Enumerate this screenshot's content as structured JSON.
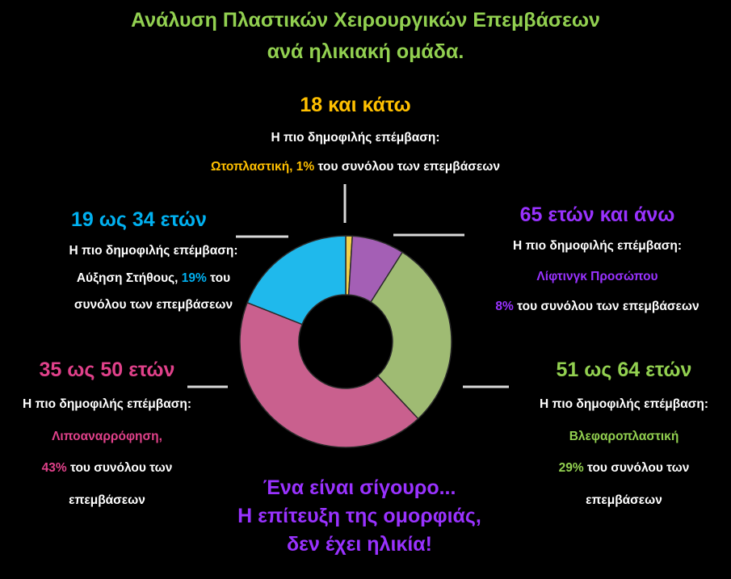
{
  "title_line1": "Ανάλυση Πλαστικών Χειρουργικών Επεμβάσεων",
  "title_line2": "ανά ηλικιακή ομάδα.",
  "colors": {
    "title": "#92d050",
    "slogan": "#9932ff",
    "leader_lines": "#d9d9d9"
  },
  "groups": {
    "g18": {
      "label": "18 και κάτω",
      "color": "#ffc000",
      "line1": "Η πιο δημοφιλής επέμβαση:",
      "procedure": "Ωτοπλαστική,",
      "percent": "1%",
      "rest": "του συνόλου των επεμβάσεων"
    },
    "g19": {
      "label": "19 ως 34 ετών",
      "color": "#00b0f0",
      "line1": "Η πιο δημοφιλής επέμβαση:",
      "procedure": "Αύξηση Στήθους,",
      "percent": "19%",
      "rest1": "του",
      "rest2": "συνόλου των επεμβάσεων"
    },
    "g65": {
      "label": "65 ετών και άνω",
      "color": "#9932ff",
      "line1": "Η πιο δημοφιλής επέμβαση:",
      "procedure": "Λίφτινγκ Προσώπου",
      "percent": "8%",
      "rest": "του συνόλου των επεμβάσεων"
    },
    "g35": {
      "label": "35 ως 50 ετών",
      "color": "#e0418a",
      "line1": "Η πιο δημοφιλής επέμβαση:",
      "procedure": "Λιποαναρρόφηση,",
      "percent": "43%",
      "rest1": "του συνόλου των",
      "rest2": "επεμβάσεων"
    },
    "g51": {
      "label": "51 ως 64 ετών",
      "color": "#92d050",
      "line1": "Η πιο δημοφιλής επέμβαση:",
      "procedure": "Βλεφαροπλαστική",
      "percent": "29%",
      "rest1": "του συνόλου των",
      "rest2": "επεμβάσεων"
    }
  },
  "slogan": {
    "line1": "Ένα είναι σίγουρο...",
    "line2": "Η επίτευξη της ομορφιάς,",
    "line3": "δεν έχει ηλικία!"
  },
  "chart_data": {
    "type": "pie",
    "donut": true,
    "categories": [
      "18 και κάτω",
      "65 ετών και άνω",
      "51 ως 64 ετών",
      "35 ως 50 ετών",
      "19 ως 34 ετών"
    ],
    "values": [
      1,
      8,
      29,
      43,
      19
    ],
    "colors": [
      "#f2d24a",
      "#a45fb5",
      "#9fbb73",
      "#c9608e",
      "#1fb9ec"
    ],
    "start_angle_deg": 0,
    "direction": "clockwise"
  }
}
